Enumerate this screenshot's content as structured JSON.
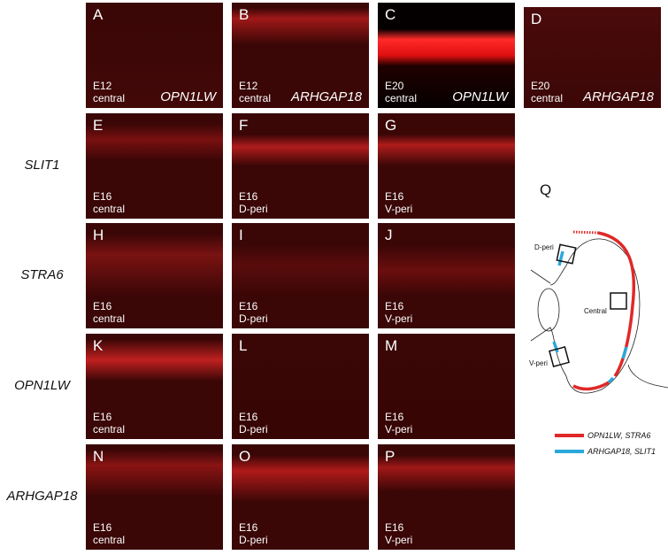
{
  "panels": [
    {
      "letter": "A",
      "stage": "E12",
      "region": "central",
      "gene": "OPN1LW"
    },
    {
      "letter": "B",
      "stage": "E12",
      "region": "central",
      "gene": "ARHGAP18"
    },
    {
      "letter": "C",
      "stage": "E20",
      "region": "central",
      "gene": "OPN1LW"
    },
    {
      "letter": "D",
      "stage": "E20",
      "region": "central",
      "gene": "ARHGAP18"
    },
    {
      "letter": "E",
      "stage": "E16",
      "region": "central"
    },
    {
      "letter": "F",
      "stage": "E16",
      "region": "D-peri"
    },
    {
      "letter": "G",
      "stage": "E16",
      "region": "V-peri"
    },
    {
      "letter": "H",
      "stage": "E16",
      "region": "central"
    },
    {
      "letter": "I",
      "stage": "E16",
      "region": "D-peri"
    },
    {
      "letter": "J",
      "stage": "E16",
      "region": "V-peri"
    },
    {
      "letter": "K",
      "stage": "E16",
      "region": "central"
    },
    {
      "letter": "L",
      "stage": "E16",
      "region": "D-peri"
    },
    {
      "letter": "M",
      "stage": "E16",
      "region": "V-peri"
    },
    {
      "letter": "N",
      "stage": "E16",
      "region": "central"
    },
    {
      "letter": "O",
      "stage": "E16",
      "region": "D-peri"
    },
    {
      "letter": "P",
      "stage": "E16",
      "region": "V-peri"
    }
  ],
  "row_labels": [
    "SLIT1",
    "STRA6",
    "OPN1LW",
    "ARHGAP18"
  ],
  "diagram": {
    "letter": "Q",
    "labels": {
      "d_peri": "D-peri",
      "central": "Central",
      "v_peri": "V-peri"
    }
  },
  "legend": [
    "OPN1LW, STRA6",
    "ARHGAP18, SLIT1"
  ]
}
